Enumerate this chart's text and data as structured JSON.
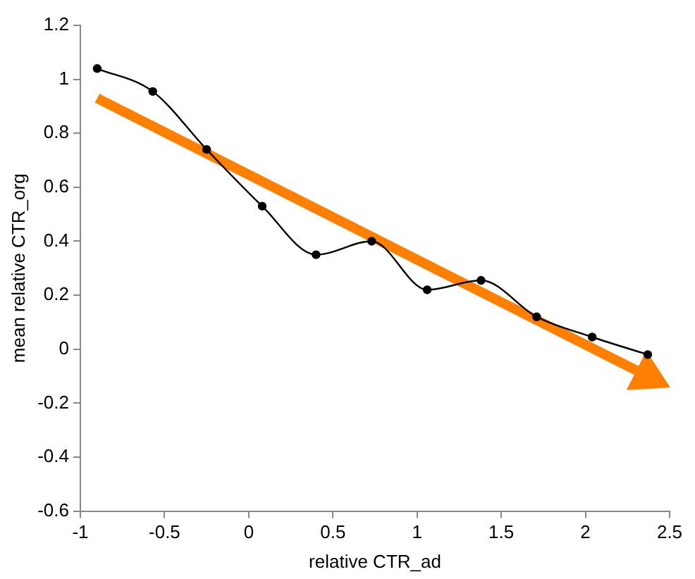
{
  "chart_data": {
    "type": "line",
    "xlabel": "relative CTR_ad",
    "ylabel": "mean relative CTR_org",
    "xlim": [
      -1,
      2.5
    ],
    "xticks": [
      -1,
      -0.5,
      0,
      0.5,
      1,
      1.5,
      2,
      2.5
    ],
    "ylim": [
      -0.6,
      1.2
    ],
    "yticks": [
      -0.6,
      -0.4,
      -0.2,
      0,
      0.2,
      0.4,
      0.6,
      0.8,
      1,
      1.2
    ],
    "grid": false,
    "legend": false,
    "marker": "circle",
    "line_style": "solid",
    "x": [
      -0.9,
      -0.57,
      -0.25,
      0.08,
      0.4,
      0.73,
      1.06,
      1.38,
      1.71,
      2.04,
      2.37
    ],
    "series": [
      {
        "color": "#000000",
        "values": [
          1.04,
          0.955,
          0.74,
          0.53,
          0.35,
          0.4,
          0.22,
          0.255,
          0.12,
          0.045,
          -0.02
        ]
      },
      {
        "color": "#ff8000",
        "marker": "triangle",
        "x": [
          -0.9,
          2.37
        ],
        "values": [
          0.93,
          -0.1
        ]
      }
    ]
  }
}
